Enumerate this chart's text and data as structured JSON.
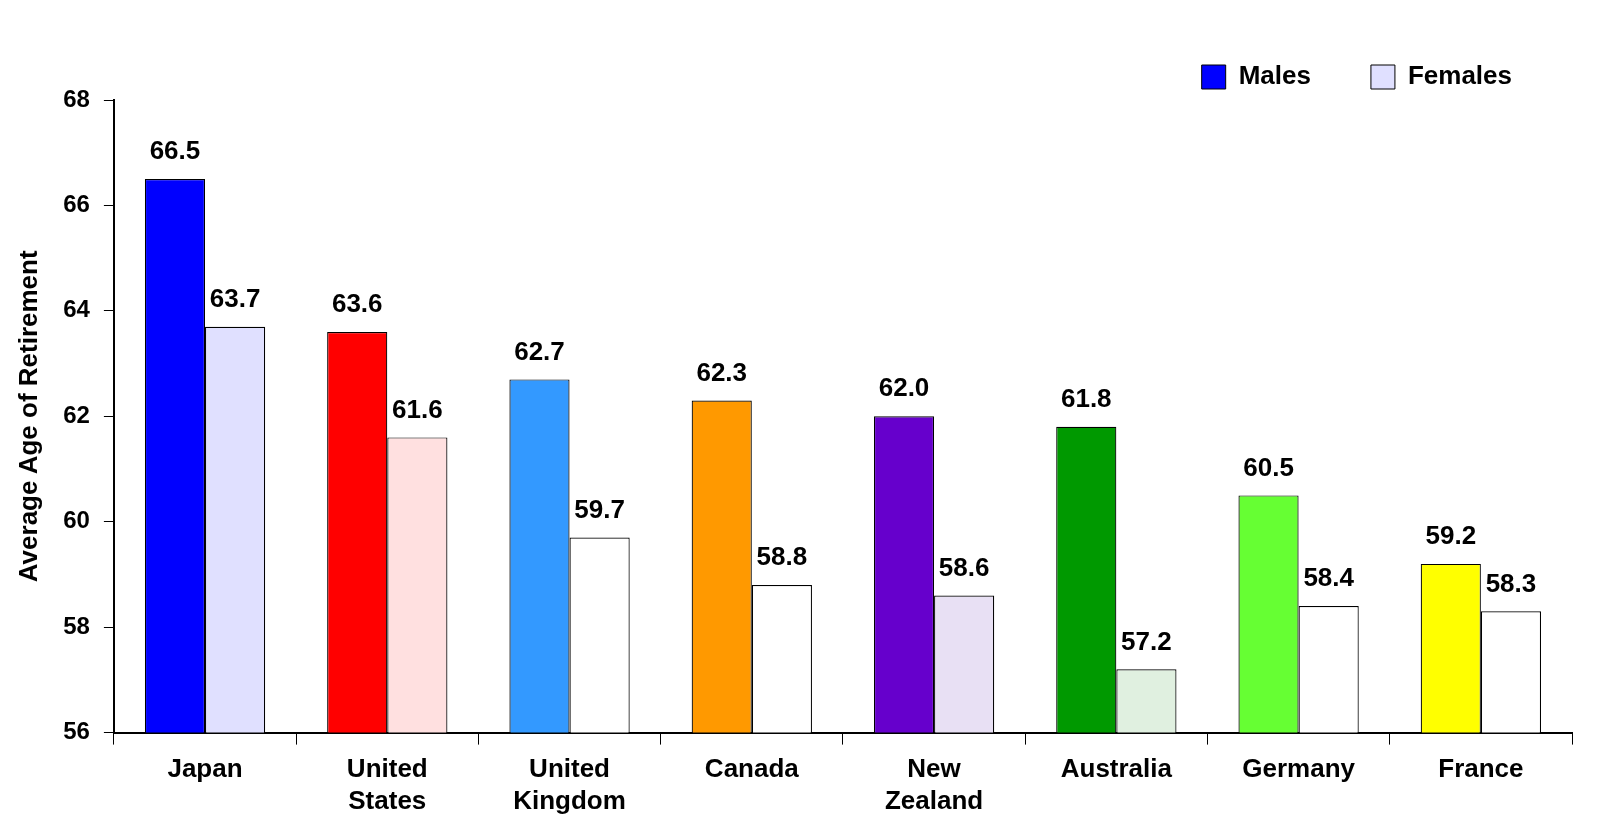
{
  "chart_data": {
    "type": "bar",
    "ylabel": "Average Age of Retirement",
    "categories": [
      "Japan",
      "United States",
      "United Kingdom",
      "Canada",
      "New Zealand",
      "Australia",
      "Germany",
      "France"
    ],
    "series": [
      {
        "name": "Males",
        "color": "#0000ff",
        "colors": [
          "#0000ff",
          "#ff0000",
          "#3399ff",
          "#ff9900",
          "#6600cc",
          "#009900",
          "#66ff33",
          "#ffff00"
        ],
        "values": [
          66.5,
          63.6,
          62.7,
          62.3,
          62.0,
          61.8,
          60.5,
          59.2
        ],
        "value_labels": [
          "66.5",
          "63.6",
          "62.7",
          "62.3",
          "62.0",
          "61.8",
          "60.5",
          "59.2"
        ]
      },
      {
        "name": "Females",
        "color": "#e0e0ff",
        "colors": [
          "#e0e0ff",
          "#ffe0e0",
          "#ffffff",
          "#ffffff",
          "#e8e0f4",
          "#e0f0e0",
          "#ffffff",
          "#ffffff"
        ],
        "values": [
          63.7,
          61.6,
          59.7,
          58.8,
          58.6,
          57.2,
          58.4,
          58.3
        ],
        "value_labels": [
          "63.7",
          "61.6",
          "59.7",
          "58.8",
          "58.6",
          "57.2",
          "58.4",
          "58.3"
        ]
      }
    ],
    "ylim": [
      56,
      68
    ],
    "yticks": [
      56,
      58,
      60,
      62,
      64,
      66,
      68
    ],
    "grid": false,
    "legend": "top right"
  }
}
